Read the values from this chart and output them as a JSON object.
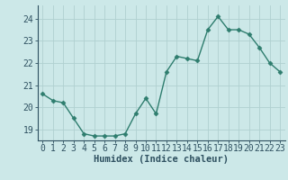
{
  "x": [
    0,
    1,
    2,
    3,
    4,
    5,
    6,
    7,
    8,
    9,
    10,
    11,
    12,
    13,
    14,
    15,
    16,
    17,
    18,
    19,
    20,
    21,
    22,
    23
  ],
  "y": [
    20.6,
    20.3,
    20.2,
    19.5,
    18.8,
    18.7,
    18.7,
    18.7,
    18.8,
    19.7,
    20.4,
    19.7,
    21.6,
    22.3,
    22.2,
    22.1,
    23.5,
    24.1,
    23.5,
    23.5,
    23.3,
    22.7,
    22.0,
    21.6
  ],
  "line_color": "#2e7d6e",
  "marker": "D",
  "marker_size": 2.5,
  "linewidth": 1.0,
  "bg_color": "#cce8e8",
  "grid_color": "#b0d0d0",
  "xlabel": "Humidex (Indice chaleur)",
  "xlabel_fontsize": 7.5,
  "yticks": [
    19,
    20,
    21,
    22,
    23,
    24
  ],
  "xlim": [
    -0.5,
    23.5
  ],
  "ylim": [
    18.5,
    24.6
  ],
  "tick_fontsize": 7.0,
  "axis_color": "#2e7d6e",
  "bottom_bar_color": "#2e5060"
}
